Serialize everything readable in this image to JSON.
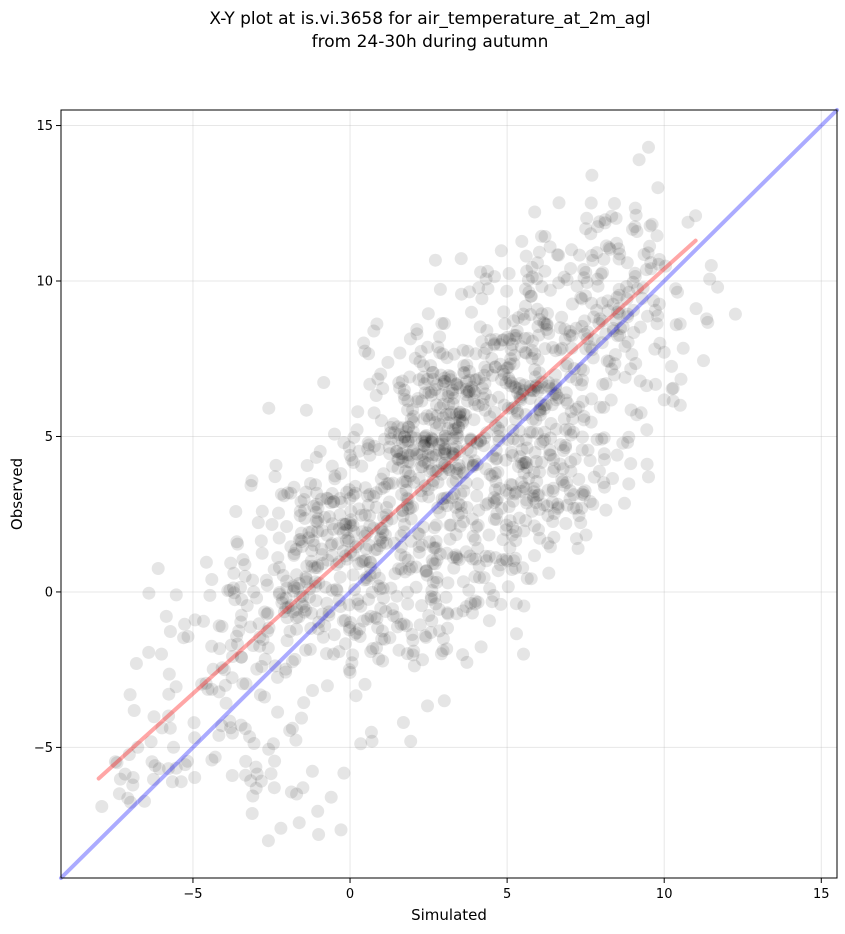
{
  "chart_data": {
    "type": "scatter",
    "title_lines": [
      "X-Y plot at is.vi.3658 for air_temperature_at_2m_agl",
      "from 24-30h during autumn"
    ],
    "xlabel": "Simulated",
    "ylabel": "Observed",
    "xlim": [
      -9.2,
      15.5
    ],
    "ylim": [
      -9.2,
      15.5
    ],
    "x_ticks": [
      -5,
      0,
      5,
      10,
      15
    ],
    "y_ticks": [
      -5,
      0,
      5,
      10,
      15
    ],
    "x_tick_labels": [
      "−5",
      "0",
      "5",
      "10",
      "15"
    ],
    "y_tick_labels": [
      "−5",
      "0",
      "5",
      "10",
      "15"
    ],
    "grid": true,
    "point_color": "#000000",
    "point_opacity": 0.1,
    "lines": [
      {
        "color": "#ff0000",
        "opacity": 0.35,
        "x": [
          -8.0,
          11.0
        ],
        "y": [
          -6.0,
          11.3
        ]
      },
      {
        "color": "#0000ff",
        "opacity": 0.33,
        "x": [
          -9.2,
          15.5
        ],
        "y": [
          -9.2,
          15.5
        ]
      }
    ],
    "clusters": [
      {
        "cx": 2.7,
        "cy": 4.8,
        "sx": 1.1,
        "sy": 1.1,
        "n": 170
      },
      {
        "cx": 3.2,
        "cy": 6.5,
        "sx": 1.3,
        "sy": 1.0,
        "n": 110
      },
      {
        "cx": 5.5,
        "cy": 7.5,
        "sx": 1.5,
        "sy": 1.4,
        "n": 160
      },
      {
        "cx": 8.0,
        "cy": 10.0,
        "sx": 1.5,
        "sy": 1.6,
        "n": 130
      },
      {
        "cx": 9.0,
        "cy": 7.5,
        "sx": 1.2,
        "sy": 1.5,
        "n": 55
      },
      {
        "cx": 5.5,
        "cy": 3.5,
        "sx": 1.3,
        "sy": 1.3,
        "n": 120
      },
      {
        "cx": 3.5,
        "cy": 1.5,
        "sx": 1.3,
        "sy": 1.3,
        "n": 110
      },
      {
        "cx": 0.0,
        "cy": 2.5,
        "sx": 1.3,
        "sy": 1.4,
        "n": 170
      },
      {
        "cx": -1.5,
        "cy": 0.8,
        "sx": 1.2,
        "sy": 1.2,
        "n": 110
      },
      {
        "cx": 1.5,
        "cy": -1.0,
        "sx": 1.3,
        "sy": 1.2,
        "n": 110
      },
      {
        "cx": -3.5,
        "cy": -1.5,
        "sx": 1.4,
        "sy": 1.4,
        "n": 80
      },
      {
        "cx": -2.5,
        "cy": -5.5,
        "sx": 1.2,
        "sy": 1.0,
        "n": 30
      },
      {
        "cx": -5.5,
        "cy": -5.0,
        "sx": 1.2,
        "sy": 1.0,
        "n": 28
      },
      {
        "cx": -7.2,
        "cy": -6.3,
        "sx": 0.5,
        "sy": 0.4,
        "n": 10
      },
      {
        "cx": 6.5,
        "cy": 4.5,
        "sx": 1.5,
        "sy": 1.5,
        "n": 90
      }
    ],
    "extra_points": [
      [
        9.5,
        14.3
      ],
      [
        9.2,
        13.9
      ],
      [
        7.7,
        13.4
      ],
      [
        9.8,
        13.0
      ],
      [
        11.0,
        12.1
      ],
      [
        11.5,
        10.5
      ],
      [
        11.7,
        9.8
      ],
      [
        9.5,
        3.7
      ],
      [
        8.5,
        4.4
      ],
      [
        7.0,
        3.0
      ],
      [
        6.0,
        2.0
      ],
      [
        5.0,
        1.0
      ],
      [
        4.8,
        -0.4
      ],
      [
        3.0,
        -3.5
      ],
      [
        1.7,
        -4.2
      ],
      [
        0.7,
        -4.8
      ],
      [
        -1.5,
        -6.3
      ],
      [
        -1.0,
        -7.8
      ],
      [
        -2.2,
        -7.6
      ],
      [
        -2.6,
        -8.0
      ],
      [
        -0.6,
        -6.6
      ],
      [
        -7.9,
        -6.9
      ],
      [
        -7.0,
        -3.3
      ],
      [
        -6.8,
        -2.3
      ],
      [
        -4.4,
        0.4
      ],
      [
        -3.7,
        0.6
      ],
      [
        -4.0,
        -2.5
      ],
      [
        -6.0,
        -2.0
      ]
    ]
  }
}
